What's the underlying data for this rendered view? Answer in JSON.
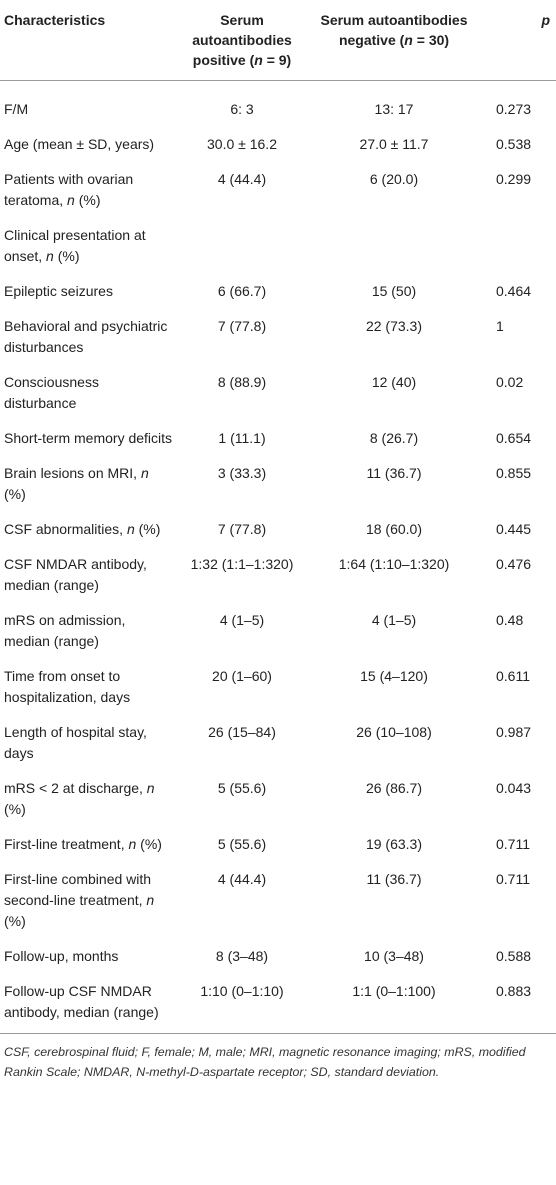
{
  "table": {
    "headers": {
      "characteristics": "Characteristics",
      "positive": {
        "pre": "Serum autoantibodies positive (",
        "n": "n",
        "post": " = 9)"
      },
      "negative": {
        "pre": "Serum autoantibodies negative (",
        "n": "n",
        "post": " = 30)"
      },
      "p": "p"
    },
    "rows": [
      {
        "label": "F/M",
        "pos": "6: 3",
        "neg": "13: 17",
        "p": "0.273"
      },
      {
        "label": "Age (mean ± SD, years)",
        "pos": "30.0 ± 16.2",
        "neg": "27.0 ± 11.7",
        "p": "0.538"
      },
      {
        "label": "Patients with ovarian teratoma,",
        "label_n": "n",
        "label_post": " (%)",
        "pos": "4 (44.4)",
        "neg": "6 (20.0)",
        "p": "0.299"
      },
      {
        "label": "Clinical presentation at onset,",
        "label_n": "n",
        "label_post": " (%)",
        "pos": "",
        "neg": "",
        "p": ""
      },
      {
        "label": "Epileptic seizures",
        "pos": "6 (66.7)",
        "neg": "15 (50)",
        "p": "0.464"
      },
      {
        "label": "Behavioral and psychiatric disturbances",
        "pos": "7 (77.8)",
        "neg": "22 (73.3)",
        "p": "1"
      },
      {
        "label": "Consciousness disturbance",
        "pos": "8 (88.9)",
        "neg": "12 (40)",
        "p": "0.02"
      },
      {
        "label": "Short-term memory deficits",
        "pos": "1 (11.1)",
        "neg": "8 (26.7)",
        "p": "0.654"
      },
      {
        "label": "Brain lesions on MRI,",
        "label_n": "n",
        "label_post": " (%)",
        "pos": "3 (33.3)",
        "neg": "11 (36.7)",
        "p": "0.855"
      },
      {
        "label": "CSF abnormalities,",
        "label_n": "n",
        "label_post": " (%)",
        "pos": "7 (77.8)",
        "neg": "18 (60.0)",
        "p": "0.445"
      },
      {
        "label": "CSF NMDAR antibody, median (range)",
        "pos": "1:32 (1:1–1:320)",
        "neg": "1:64 (1:10–1:320)",
        "p": "0.476"
      },
      {
        "label": "mRS on admission, median (range)",
        "pos": "4 (1–5)",
        "neg": "4 (1–5)",
        "p": "0.48"
      },
      {
        "label": "Time from onset to hospitalization, days",
        "pos": "20 (1–60)",
        "neg": "15 (4–120)",
        "p": "0.611"
      },
      {
        "label": "Length of hospital stay, days",
        "pos": "26 (15–84)",
        "neg": "26 (10–108)",
        "p": "0.987"
      },
      {
        "label": "mRS < 2 at discharge,",
        "label_n": "n",
        "label_post": " (%)",
        "pos": "5 (55.6)",
        "neg": "26 (86.7)",
        "p": "0.043"
      },
      {
        "label": "First-line treatment,",
        "label_n": "n",
        "label_post": " (%)",
        "pos": "5 (55.6)",
        "neg": "19 (63.3)",
        "p": "0.711"
      },
      {
        "label": "First-line combined with second-line treatment,",
        "label_n": "n",
        "label_post": " (%)",
        "pos": "4 (44.4)",
        "neg": "11 (36.7)",
        "p": "0.711"
      },
      {
        "label": "Follow-up, months",
        "pos": "8 (3–48)",
        "neg": "10 (3–48)",
        "p": "0.588"
      },
      {
        "label": "Follow-up CSF NMDAR antibody, median (range)",
        "pos": "1:10 (0–1:10)",
        "neg": "1:1 (0–1:100)",
        "p": "0.883"
      }
    ]
  },
  "footnote": "CSF, cerebrospinal fluid; F, female; M, male; MRI, magnetic resonance imaging; mRS, modified Rankin Scale; NMDAR, N-methyl-D-aspartate receptor; SD, standard deviation."
}
